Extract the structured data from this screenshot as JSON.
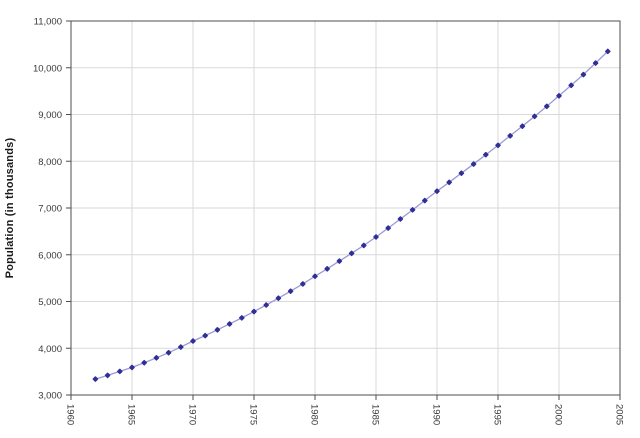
{
  "chart_data": {
    "type": "line",
    "title": "",
    "xlabel": "",
    "ylabel": "Population (in thousands)",
    "x": [
      1962,
      1963,
      1964,
      1965,
      1966,
      1967,
      1968,
      1969,
      1970,
      1971,
      1972,
      1973,
      1974,
      1975,
      1976,
      1977,
      1978,
      1979,
      1980,
      1981,
      1982,
      1983,
      1984,
      1985,
      1986,
      1987,
      1988,
      1989,
      1990,
      1991,
      1992,
      1993,
      1994,
      1995,
      1996,
      1997,
      1998,
      1999,
      2000,
      2001,
      2002,
      2003,
      2004
    ],
    "series": [
      {
        "name": "Population",
        "values": [
          3340,
          3420,
          3505,
          3590,
          3690,
          3795,
          3905,
          4025,
          4155,
          4270,
          4395,
          4520,
          4650,
          4785,
          4925,
          5070,
          5220,
          5375,
          5540,
          5700,
          5865,
          6030,
          6200,
          6380,
          6570,
          6765,
          6960,
          7160,
          7360,
          7550,
          7745,
          7940,
          8140,
          8340,
          8545,
          8750,
          8960,
          9175,
          9400,
          9625,
          9855,
          10100,
          10350
        ]
      }
    ],
    "xlim": [
      1960,
      2005
    ],
    "ylim": [
      3000,
      11000
    ],
    "x_ticks": {
      "values": [
        1960,
        1965,
        1970,
        1975,
        1980,
        1985,
        1990,
        1995,
        2000,
        2005
      ],
      "labels": [
        "1960",
        "1965",
        "1970",
        "1975",
        "1980",
        "1985",
        "1990",
        "1995",
        "2000",
        "2005"
      ]
    },
    "y_ticks": {
      "values": [
        3000,
        4000,
        5000,
        6000,
        7000,
        8000,
        9000,
        10000,
        11000
      ],
      "labels": [
        "3,000",
        "4,000",
        "5,000",
        "6,000",
        "7,000",
        "8,000",
        "9,000",
        "10,000",
        "11,000"
      ]
    },
    "grid": true,
    "legend": "none",
    "x_tick_label_rotation_deg": 90,
    "marker_shape": "diamond",
    "colors": {
      "line": "#9a9ad4",
      "marker": "#2f2f96",
      "grid": "#d9d9d9",
      "frame": "#4d4d4d",
      "tick_label": "#383838",
      "axis_title": "#1a1a1a",
      "background": "#ffffff"
    }
  }
}
